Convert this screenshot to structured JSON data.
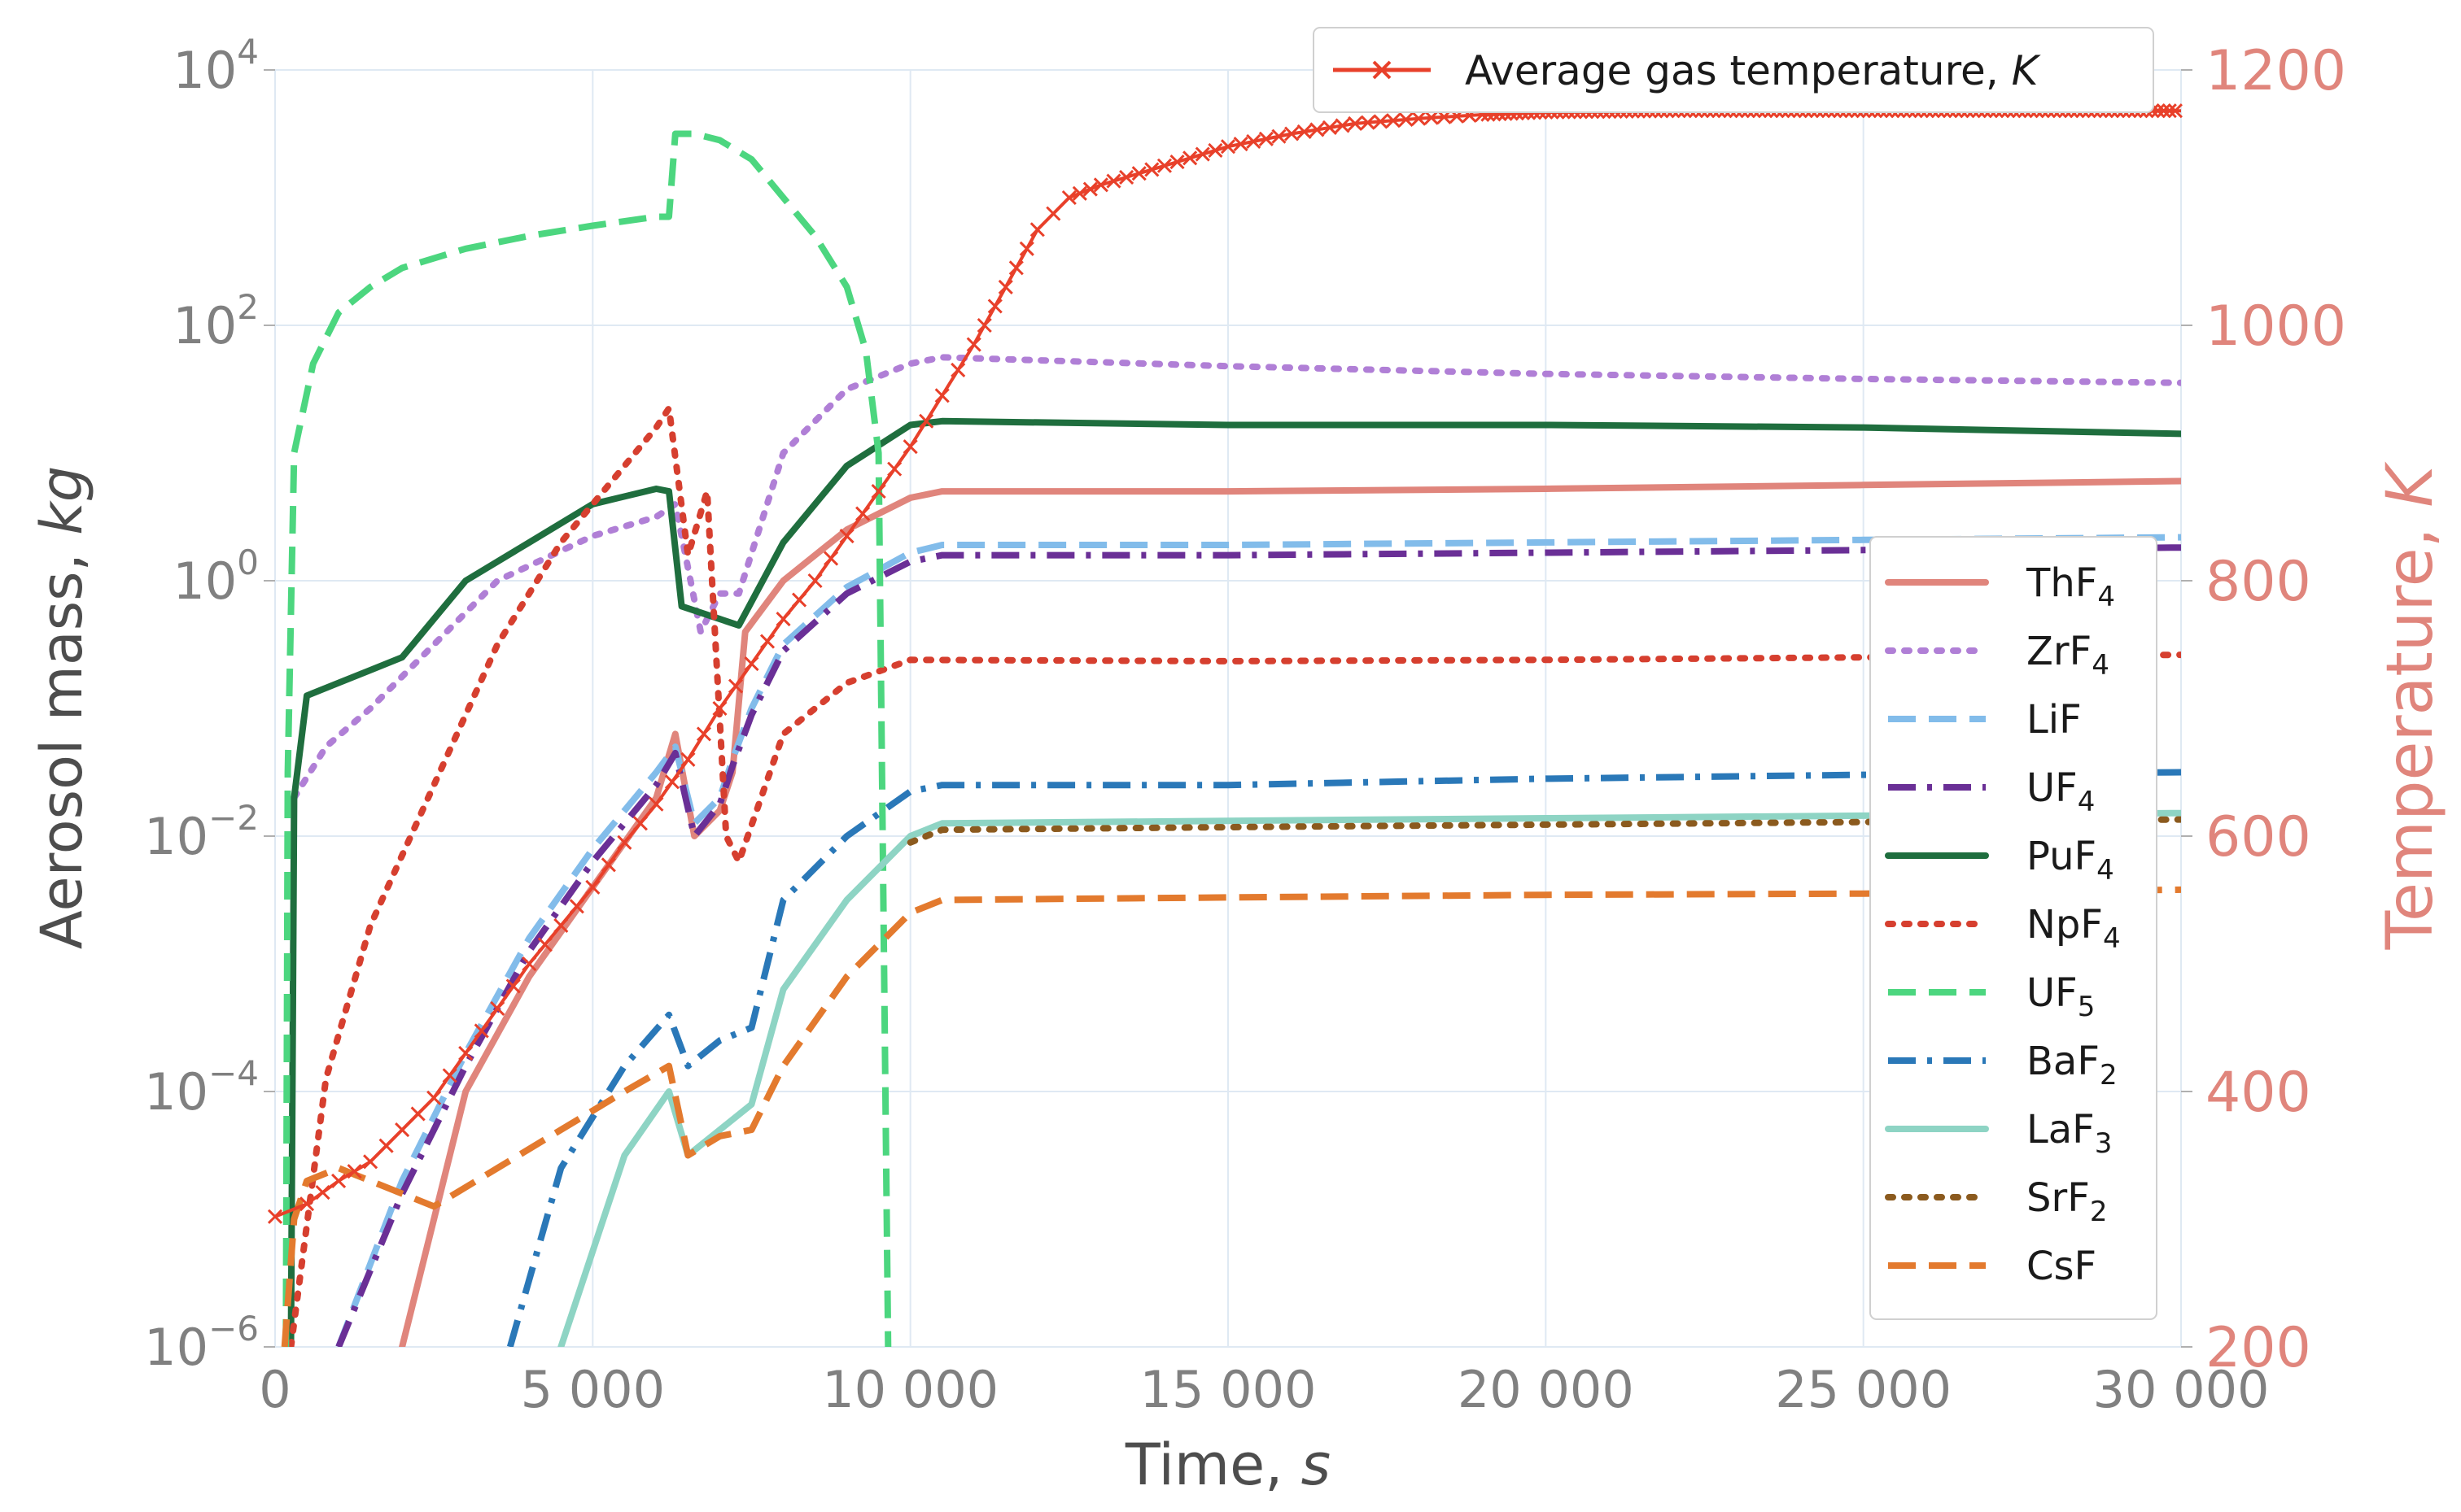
{
  "chart_data": {
    "type": "line",
    "xlabel": "Time",
    "xlabel_unit": "s",
    "ylabel_left": "Aerosol mass",
    "ylabel_left_unit": "kg",
    "ylabel_right": "Temperature",
    "ylabel_right_unit": "K",
    "left_scale": "log",
    "xlim": [
      0,
      30000
    ],
    "ylim_left_exp": [
      -6,
      4
    ],
    "ylim_right": [
      200,
      1200
    ],
    "grid": true,
    "x_ticks": [
      {
        "value": 0,
        "label": "0"
      },
      {
        "value": 5000,
        "label": "5 000"
      },
      {
        "value": 10000,
        "label": "10 000"
      },
      {
        "value": 15000,
        "label": "15 000"
      },
      {
        "value": 20000,
        "label": "20 000"
      },
      {
        "value": 25000,
        "label": "25 000"
      },
      {
        "value": 30000,
        "label": "30 000"
      }
    ],
    "y_left_ticks": [
      {
        "exp": 4,
        "base": "10",
        "sup": "4"
      },
      {
        "exp": 2,
        "base": "10",
        "sup": "2"
      },
      {
        "exp": 0,
        "base": "10",
        "sup": "0"
      },
      {
        "exp": -2,
        "base": "10",
        "sup": "−2"
      },
      {
        "exp": -4,
        "base": "10",
        "sup": "−4"
      },
      {
        "exp": -6,
        "base": "10",
        "sup": "−6"
      }
    ],
    "y_right_ticks": [
      {
        "value": 1200,
        "label": "1200"
      },
      {
        "value": 1000,
        "label": "1000"
      },
      {
        "value": 800,
        "label": "800"
      },
      {
        "value": 600,
        "label": "600"
      },
      {
        "value": 400,
        "label": "400"
      },
      {
        "value": 200,
        "label": "200"
      }
    ],
    "temperature_series": {
      "name": "Average gas temperature, ",
      "name_unit": "K",
      "color": "#e8402a",
      "points": [
        [
          0,
          302
        ],
        [
          500,
          312
        ],
        [
          1000,
          330
        ],
        [
          1500,
          345
        ],
        [
          2000,
          370
        ],
        [
          2500,
          395
        ],
        [
          3000,
          430
        ],
        [
          3500,
          465
        ],
        [
          4000,
          500
        ],
        [
          4500,
          530
        ],
        [
          5000,
          560
        ],
        [
          5500,
          595
        ],
        [
          6000,
          625
        ],
        [
          6500,
          660
        ],
        [
          7000,
          700
        ],
        [
          7500,
          735
        ],
        [
          8000,
          770
        ],
        [
          8500,
          800
        ],
        [
          9000,
          835
        ],
        [
          9500,
          870
        ],
        [
          10000,
          905
        ],
        [
          10500,
          945
        ],
        [
          11000,
          985
        ],
        [
          11500,
          1030
        ],
        [
          12000,
          1075
        ],
        [
          12500,
          1100
        ],
        [
          13000,
          1110
        ],
        [
          14000,
          1125
        ],
        [
          15000,
          1140
        ],
        [
          16000,
          1150
        ],
        [
          17000,
          1158
        ],
        [
          18000,
          1162
        ],
        [
          19000,
          1165
        ],
        [
          20000,
          1167
        ],
        [
          22000,
          1168
        ],
        [
          25000,
          1168
        ],
        [
          28000,
          1168
        ],
        [
          30000,
          1168
        ]
      ]
    },
    "series": [
      {
        "name": "ThF",
        "sub": "4",
        "color": "#e0857c",
        "dash": "solid",
        "points": [
          [
            2000,
            -6
          ],
          [
            2500,
            -5
          ],
          [
            3000,
            -4
          ],
          [
            4000,
            -3.1
          ],
          [
            5000,
            -2.4
          ],
          [
            6000,
            -1.7
          ],
          [
            6300,
            -1.2
          ],
          [
            6600,
            -2.0
          ],
          [
            7000,
            -1.8
          ],
          [
            7200,
            -1.5
          ],
          [
            7400,
            -0.4
          ],
          [
            8000,
            0
          ],
          [
            9000,
            0.4
          ],
          [
            10000,
            0.65
          ],
          [
            10500,
            0.7
          ],
          [
            15000,
            0.7
          ],
          [
            20000,
            0.72
          ],
          [
            25000,
            0.75
          ],
          [
            30000,
            0.78
          ]
        ]
      },
      {
        "name": "ZrF",
        "sub": "4",
        "color": "#b07fd6",
        "dash": "dots",
        "points": [
          [
            300,
            -1.7
          ],
          [
            800,
            -1.3
          ],
          [
            1500,
            -1.0
          ],
          [
            2500,
            -0.5
          ],
          [
            3500,
            0
          ],
          [
            5000,
            0.35
          ],
          [
            6000,
            0.5
          ],
          [
            6300,
            0.6
          ],
          [
            6700,
            -0.4
          ],
          [
            7000,
            -0.1
          ],
          [
            7300,
            -0.1
          ],
          [
            8000,
            1.0
          ],
          [
            9000,
            1.5
          ],
          [
            10000,
            1.7
          ],
          [
            10500,
            1.75
          ],
          [
            15000,
            1.68
          ],
          [
            20000,
            1.62
          ],
          [
            25000,
            1.58
          ],
          [
            30000,
            1.55
          ]
        ]
      },
      {
        "name": "LiF",
        "sub": "",
        "color": "#82bcea",
        "dash": "dash",
        "points": [
          [
            1000,
            -6
          ],
          [
            2000,
            -4.7
          ],
          [
            3000,
            -3.7
          ],
          [
            4000,
            -2.8
          ],
          [
            5000,
            -2.1
          ],
          [
            6000,
            -1.5
          ],
          [
            6300,
            -1.3
          ],
          [
            6600,
            -1.9
          ],
          [
            7000,
            -1.7
          ],
          [
            7200,
            -1.4
          ],
          [
            7500,
            -1.0
          ],
          [
            8000,
            -0.5
          ],
          [
            9000,
            -0.05
          ],
          [
            10000,
            0.22
          ],
          [
            10500,
            0.28
          ],
          [
            15000,
            0.28
          ],
          [
            20000,
            0.3
          ],
          [
            25000,
            0.32
          ],
          [
            30000,
            0.34
          ]
        ]
      },
      {
        "name": "UF",
        "sub": "4",
        "color": "#6a2f96",
        "dash": "dashdot",
        "points": [
          [
            1000,
            -6
          ],
          [
            2000,
            -4.8
          ],
          [
            3000,
            -3.8
          ],
          [
            4000,
            -2.9
          ],
          [
            5000,
            -2.2
          ],
          [
            6000,
            -1.6
          ],
          [
            6300,
            -1.35
          ],
          [
            6600,
            -2.0
          ],
          [
            7000,
            -1.75
          ],
          [
            7200,
            -1.45
          ],
          [
            7500,
            -1.05
          ],
          [
            8000,
            -0.55
          ],
          [
            9000,
            -0.1
          ],
          [
            10000,
            0.15
          ],
          [
            10500,
            0.2
          ],
          [
            15000,
            0.2
          ],
          [
            20000,
            0.22
          ],
          [
            25000,
            0.24
          ],
          [
            30000,
            0.26
          ]
        ]
      },
      {
        "name": "PuF",
        "sub": "4",
        "color": "#1f6e3e",
        "dash": "solid",
        "points": [
          [
            250,
            -6
          ],
          [
            300,
            -1.7
          ],
          [
            500,
            -0.9
          ],
          [
            1000,
            -0.8
          ],
          [
            1500,
            -0.7
          ],
          [
            2000,
            -0.6
          ],
          [
            3000,
            0
          ],
          [
            4000,
            0.3
          ],
          [
            5000,
            0.6
          ],
          [
            6000,
            0.72
          ],
          [
            6200,
            0.7
          ],
          [
            6400,
            -0.2
          ],
          [
            7000,
            -0.3
          ],
          [
            7300,
            -0.35
          ],
          [
            8000,
            0.3
          ],
          [
            9000,
            0.9
          ],
          [
            10000,
            1.22
          ],
          [
            10500,
            1.25
          ],
          [
            15000,
            1.22
          ],
          [
            20000,
            1.22
          ],
          [
            25000,
            1.2
          ],
          [
            30000,
            1.15
          ]
        ]
      },
      {
        "name": "NpF",
        "sub": "4",
        "color": "#d63f2f",
        "dash": "dots",
        "points": [
          [
            250,
            -6
          ],
          [
            800,
            -3.9
          ],
          [
            1500,
            -2.7
          ],
          [
            2500,
            -1.6
          ],
          [
            3500,
            -0.5
          ],
          [
            4500,
            0.3
          ],
          [
            5500,
            0.9
          ],
          [
            6000,
            1.2
          ],
          [
            6200,
            1.35
          ],
          [
            6500,
            0.2
          ],
          [
            6800,
            0.7
          ],
          [
            7100,
            -2.0
          ],
          [
            7300,
            -2.2
          ],
          [
            8000,
            -1.2
          ],
          [
            9000,
            -0.8
          ],
          [
            10000,
            -0.62
          ],
          [
            15000,
            -0.63
          ],
          [
            20000,
            -0.62
          ],
          [
            25000,
            -0.6
          ],
          [
            30000,
            -0.58
          ]
        ]
      },
      {
        "name": "UF",
        "sub": "5",
        "color": "#4cd67f",
        "dash": "dash",
        "points": [
          [
            170,
            -6
          ],
          [
            200,
            -1.5
          ],
          [
            300,
            1.0
          ],
          [
            600,
            1.7
          ],
          [
            1000,
            2.1
          ],
          [
            1500,
            2.3
          ],
          [
            2000,
            2.45
          ],
          [
            3000,
            2.6
          ],
          [
            4000,
            2.7
          ],
          [
            5000,
            2.78
          ],
          [
            6000,
            2.85
          ],
          [
            6200,
            2.85
          ],
          [
            6300,
            3.5
          ],
          [
            6600,
            3.5
          ],
          [
            7000,
            3.45
          ],
          [
            7500,
            3.3
          ],
          [
            8000,
            3.0
          ],
          [
            8500,
            2.7
          ],
          [
            9000,
            2.3
          ],
          [
            9300,
            1.8
          ],
          [
            9500,
            1.0
          ],
          [
            9650,
            -6
          ]
        ]
      },
      {
        "name": "BaF",
        "sub": "2",
        "color": "#2a78b8",
        "dash": "dashdot",
        "points": [
          [
            3700,
            -6
          ],
          [
            4500,
            -4.6
          ],
          [
            5500,
            -3.8
          ],
          [
            6200,
            -3.4
          ],
          [
            6500,
            -3.8
          ],
          [
            7000,
            -3.6
          ],
          [
            7500,
            -3.5
          ],
          [
            8000,
            -2.5
          ],
          [
            9000,
            -2.0
          ],
          [
            10000,
            -1.65
          ],
          [
            10500,
            -1.6
          ],
          [
            15000,
            -1.6
          ],
          [
            20000,
            -1.55
          ],
          [
            25000,
            -1.52
          ],
          [
            30000,
            -1.5
          ]
        ]
      },
      {
        "name": "LaF",
        "sub": "3",
        "color": "#8ed4c4",
        "dash": "solid",
        "points": [
          [
            4500,
            -6
          ],
          [
            5500,
            -4.5
          ],
          [
            6200,
            -4.0
          ],
          [
            6500,
            -4.5
          ],
          [
            7000,
            -4.3
          ],
          [
            7500,
            -4.1
          ],
          [
            8000,
            -3.2
          ],
          [
            9000,
            -2.5
          ],
          [
            10000,
            -2.0
          ],
          [
            10500,
            -1.9
          ],
          [
            15000,
            -1.88
          ],
          [
            20000,
            -1.86
          ],
          [
            25000,
            -1.84
          ],
          [
            30000,
            -1.82
          ]
        ]
      },
      {
        "name": "SrF",
        "sub": "2",
        "color": "#8b5a1e",
        "dash": "dots",
        "points": [
          [
            10000,
            -2.05
          ],
          [
            10500,
            -1.95
          ],
          [
            15000,
            -1.93
          ],
          [
            20000,
            -1.91
          ],
          [
            25000,
            -1.89
          ],
          [
            30000,
            -1.87
          ]
        ]
      },
      {
        "name": "CsF",
        "sub": "",
        "color": "#e37a2e",
        "dash": "dash",
        "points": [
          [
            150,
            -6
          ],
          [
            300,
            -5.0
          ],
          [
            500,
            -4.7
          ],
          [
            1000,
            -4.6
          ],
          [
            2000,
            -4.8
          ],
          [
            2500,
            -4.9
          ],
          [
            3500,
            -4.6
          ],
          [
            4500,
            -4.3
          ],
          [
            5500,
            -4.0
          ],
          [
            6200,
            -3.8
          ],
          [
            6500,
            -4.5
          ],
          [
            7000,
            -4.35
          ],
          [
            7500,
            -4.3
          ],
          [
            8000,
            -3.8
          ],
          [
            9000,
            -3.1
          ],
          [
            10000,
            -2.6
          ],
          [
            10500,
            -2.5
          ],
          [
            15000,
            -2.48
          ],
          [
            20000,
            -2.46
          ],
          [
            25000,
            -2.45
          ],
          [
            30000,
            -2.42
          ]
        ]
      }
    ]
  }
}
